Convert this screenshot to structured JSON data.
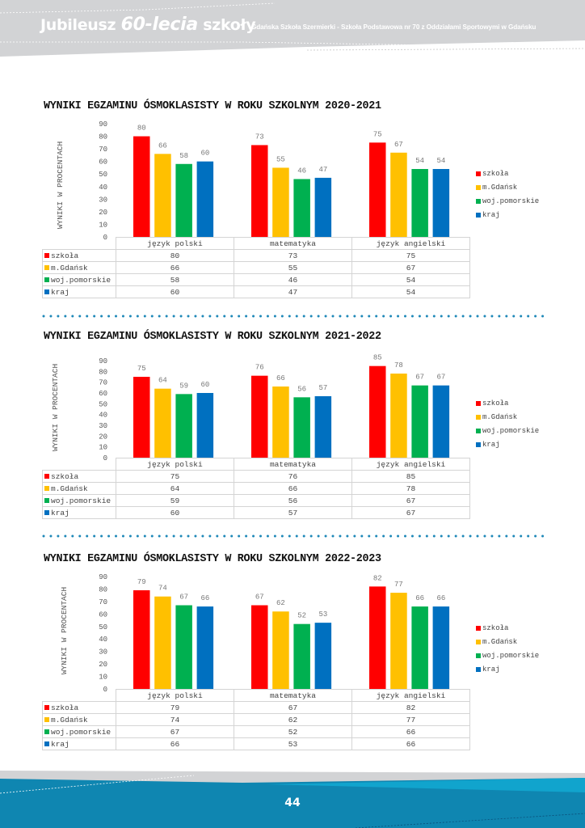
{
  "header": {
    "title_prefix": "Jubileusz ",
    "title_number": "60-lecia",
    "title_suffix": " szkoły",
    "subtitle": "Gdańska Szkoła Szermierki - Szkoła Podstawowa nr 70 z Oddziałami Sportowymi w Gdańsku"
  },
  "footer": {
    "page_number": "44"
  },
  "colors": {
    "szkola": "#ff0000",
    "gdansk": "#ffc000",
    "woj": "#00b050",
    "kraj": "#0070c0",
    "separator": "#1e88b8",
    "header_bg": "#d2d3d5",
    "footer_bg": "#0f86b1"
  },
  "chart_data": [
    {
      "type": "bar",
      "title": "WYNIKI EGZAMINU ÓSMOKLASISTY W ROKU SZKOLNYM 2020-2021",
      "xlabel": "",
      "ylabel": "WYNIKI W PROCENTACH",
      "ylim": [
        0,
        90
      ],
      "yticks": [
        "0",
        "10",
        "20",
        "30",
        "40",
        "50",
        "60",
        "70",
        "80",
        "90"
      ],
      "categories": [
        "język polski",
        "matematyka",
        "język angielski"
      ],
      "legend_position": "right",
      "grid": false,
      "series": [
        {
          "name": "szkoła",
          "color": "#ff0000",
          "values": [
            80,
            73,
            75
          ]
        },
        {
          "name": "m.Gdańsk",
          "color": "#ffc000",
          "values": [
            66,
            55,
            67
          ]
        },
        {
          "name": "woj.pomorskie",
          "color": "#00b050",
          "values": [
            58,
            46,
            54
          ]
        },
        {
          "name": "kraj",
          "color": "#0070c0",
          "values": [
            60,
            47,
            54
          ]
        }
      ]
    },
    {
      "type": "bar",
      "title": "WYNIKI EGZAMINU ÓSMOKLASISTY W ROKU SZKOLNYM 2021-2022",
      "xlabel": "",
      "ylabel": "WYNIKI W PROCENTACH",
      "ylim": [
        0,
        90
      ],
      "yticks": [
        "0",
        "10",
        "20",
        "30",
        "40",
        "50",
        "60",
        "70",
        "80",
        "90"
      ],
      "categories": [
        "język polski",
        "matematyka",
        "język angielski"
      ],
      "legend_position": "right",
      "grid": false,
      "series": [
        {
          "name": "szkoła",
          "color": "#ff0000",
          "values": [
            75,
            76,
            85
          ]
        },
        {
          "name": "m.Gdańsk",
          "color": "#ffc000",
          "values": [
            64,
            66,
            78
          ]
        },
        {
          "name": "woj.pomorskie",
          "color": "#00b050",
          "values": [
            59,
            56,
            67
          ]
        },
        {
          "name": "kraj",
          "color": "#0070c0",
          "values": [
            60,
            57,
            67
          ]
        }
      ]
    },
    {
      "type": "bar",
      "title": "WYNIKI EGZAMINU ÓSMOKLASISTY W ROKU SZKOLNYM 2022-2023",
      "xlabel": "",
      "ylabel": "WYNIKI W PROCENTACH",
      "ylim": [
        0,
        90
      ],
      "yticks": [
        "0",
        "10",
        "20",
        "30",
        "40",
        "50",
        "60",
        "70",
        "80",
        "90"
      ],
      "categories": [
        "język polski",
        "matematyka",
        "język angielski"
      ],
      "legend_position": "right",
      "grid": false,
      "series": [
        {
          "name": "szkoła",
          "color": "#ff0000",
          "values": [
            79,
            67,
            82
          ]
        },
        {
          "name": "m.Gdańsk",
          "color": "#ffc000",
          "values": [
            74,
            62,
            77
          ]
        },
        {
          "name": "woj.pomorskie",
          "color": "#00b050",
          "values": [
            67,
            52,
            66
          ]
        },
        {
          "name": "kraj",
          "color": "#0070c0",
          "values": [
            66,
            53,
            66
          ]
        }
      ]
    }
  ]
}
